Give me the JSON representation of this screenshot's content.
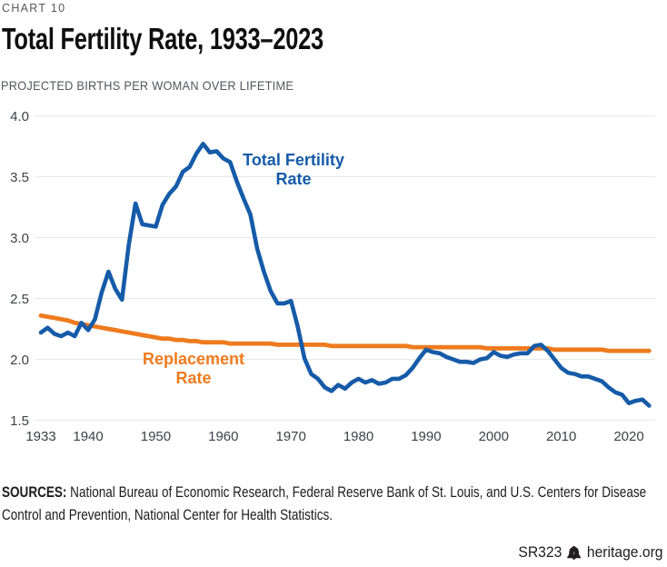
{
  "header": {
    "eyebrow": "CHART 10",
    "title": "Total Fertility Rate, 1933–2023",
    "subtitle": "PROJECTED BIRTHS PER WOMAN OVER LIFETIME"
  },
  "chart_data": {
    "type": "line",
    "title": "Total Fertility Rate, 1933–2023",
    "subtitle": "PROJECTED BIRTHS PER WOMAN OVER LIFETIME",
    "xlabel": "",
    "ylabel": "",
    "ylim": [
      1.5,
      4.0
    ],
    "yticks": [
      4.0,
      3.5,
      3.0,
      2.5,
      2.0,
      1.5
    ],
    "ytick_labels": [
      "4.0",
      "3.5",
      "3.0",
      "2.5",
      "2.0",
      "1.5"
    ],
    "xticks": [
      1933,
      1940,
      1950,
      1960,
      1970,
      1980,
      1990,
      2000,
      2010,
      2020
    ],
    "grid": "horizontal",
    "legend_position": "inline-annotations",
    "x": [
      1933,
      1934,
      1935,
      1936,
      1937,
      1938,
      1939,
      1940,
      1941,
      1942,
      1943,
      1944,
      1945,
      1946,
      1947,
      1948,
      1949,
      1950,
      1951,
      1952,
      1953,
      1954,
      1955,
      1956,
      1957,
      1958,
      1959,
      1960,
      1961,
      1962,
      1963,
      1964,
      1965,
      1966,
      1967,
      1968,
      1969,
      1970,
      1971,
      1972,
      1973,
      1974,
      1975,
      1976,
      1977,
      1978,
      1979,
      1980,
      1981,
      1982,
      1983,
      1984,
      1985,
      1986,
      1987,
      1988,
      1989,
      1990,
      1991,
      1992,
      1993,
      1994,
      1995,
      1996,
      1997,
      1998,
      1999,
      2000,
      2001,
      2002,
      2003,
      2004,
      2005,
      2006,
      2007,
      2008,
      2009,
      2010,
      2011,
      2012,
      2013,
      2014,
      2015,
      2016,
      2017,
      2018,
      2019,
      2020,
      2021,
      2022,
      2023
    ],
    "series": [
      {
        "name": "Total Fertility Rate",
        "label_line1": "Total Fertility",
        "label_line2": "Rate",
        "color": "#165BA8",
        "values": [
          2.22,
          2.26,
          2.21,
          2.19,
          2.22,
          2.19,
          2.3,
          2.24,
          2.33,
          2.55,
          2.72,
          2.58,
          2.49,
          2.94,
          3.28,
          3.11,
          3.1,
          3.09,
          3.27,
          3.36,
          3.42,
          3.54,
          3.58,
          3.69,
          3.77,
          3.7,
          3.71,
          3.65,
          3.62,
          3.46,
          3.32,
          3.19,
          2.91,
          2.72,
          2.56,
          2.46,
          2.46,
          2.48,
          2.27,
          2.01,
          1.88,
          1.84,
          1.77,
          1.74,
          1.79,
          1.76,
          1.81,
          1.84,
          1.81,
          1.83,
          1.8,
          1.81,
          1.84,
          1.84,
          1.87,
          1.93,
          2.01,
          2.08,
          2.06,
          2.05,
          2.02,
          2.0,
          1.98,
          1.98,
          1.97,
          2.0,
          2.01,
          2.06,
          2.03,
          2.02,
          2.04,
          2.05,
          2.05,
          2.11,
          2.12,
          2.07,
          2.0,
          1.93,
          1.89,
          1.88,
          1.86,
          1.86,
          1.84,
          1.82,
          1.77,
          1.73,
          1.71,
          1.64,
          1.66,
          1.67,
          1.62
        ]
      },
      {
        "name": "Replacement Rate",
        "label_line1": "Replacement",
        "label_line2": "Rate",
        "color": "#EE7B1E",
        "values": [
          2.36,
          2.35,
          2.34,
          2.33,
          2.32,
          2.3,
          2.29,
          2.28,
          2.27,
          2.26,
          2.25,
          2.24,
          2.23,
          2.22,
          2.21,
          2.2,
          2.19,
          2.18,
          2.17,
          2.17,
          2.16,
          2.16,
          2.15,
          2.15,
          2.14,
          2.14,
          2.14,
          2.14,
          2.13,
          2.13,
          2.13,
          2.13,
          2.13,
          2.13,
          2.13,
          2.12,
          2.12,
          2.12,
          2.12,
          2.12,
          2.12,
          2.12,
          2.12,
          2.11,
          2.11,
          2.11,
          2.11,
          2.11,
          2.11,
          2.11,
          2.11,
          2.11,
          2.11,
          2.11,
          2.11,
          2.1,
          2.1,
          2.1,
          2.1,
          2.1,
          2.1,
          2.1,
          2.1,
          2.1,
          2.1,
          2.1,
          2.09,
          2.09,
          2.09,
          2.09,
          2.09,
          2.09,
          2.09,
          2.09,
          2.09,
          2.09,
          2.08,
          2.08,
          2.08,
          2.08,
          2.08,
          2.08,
          2.08,
          2.08,
          2.07,
          2.07,
          2.07,
          2.07,
          2.07,
          2.07,
          2.07
        ]
      }
    ]
  },
  "colors": {
    "tfr_blue": "#165BA8",
    "replacement_orange": "#EE7B1E",
    "gridline": "#E9EAEB",
    "axis_text": "#3E4146"
  },
  "footnote": {
    "sources_label": "SOURCES:",
    "sources_line1_rest": " National Bureau of Economic Research, Federal Reserve Bank of St. Louis, and U.S. Centers for Disease",
    "sources_line2": "Control and Prevention, National Center for Health Statistics.",
    "report_id": "SR323",
    "site": "heritage.org"
  }
}
